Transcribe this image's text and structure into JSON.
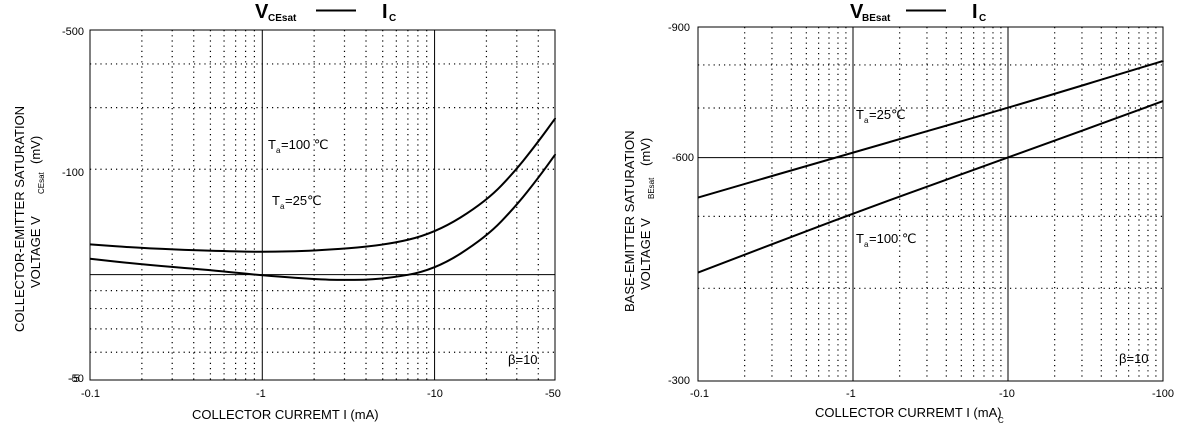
{
  "chart_data": [
    {
      "type": "line",
      "title_main": "V",
      "title_sub": "CEsat",
      "title_sep": "——",
      "title_right": "I",
      "title_right_sub": "C",
      "xlabel": "COLLECTOR CURREMT I  (mA)",
      "ylabel_line1": "COLLECTOR-EMITTER SATURATION",
      "ylabel_line2": "VOLTAGE   V",
      "ylabel_sub": "CEsat",
      "ylabel_unit": "(mV)",
      "x_scale": "log",
      "y_scale": "log",
      "xlim": [
        -0.1,
        -50
      ],
      "ylim": [
        -50,
        -500
      ],
      "x_ticks": [
        "-0.1",
        "-1",
        "-10",
        "-50"
      ],
      "y_ticks": [
        "-500",
        "-100",
        "-50"
      ],
      "y_tick_extra": "-5",
      "grid": true,
      "annotation": "β=10",
      "series": [
        {
          "name": "Ta=100 ℃",
          "label_T": "T",
          "label_sub": "a",
          "label_rest": "=100 ℃",
          "x": [
            -0.1,
            -0.2,
            -0.5,
            -1,
            -2,
            -5,
            -10,
            -20,
            -30,
            -40,
            -50
          ],
          "y": [
            -122,
            -119,
            -117,
            -116,
            -117,
            -121,
            -131,
            -162,
            -200,
            -240,
            -279
          ]
        },
        {
          "name": "Ta=25℃",
          "label_T": "T",
          "label_sub": "a",
          "label_rest": "=25℃",
          "x": [
            -0.1,
            -0.2,
            -0.5,
            -1,
            -2,
            -3,
            -5,
            -10,
            -20,
            -30,
            -40,
            -50
          ],
          "y": [
            -111,
            -107,
            -103,
            -99.5,
            -97,
            -96.5,
            -97,
            -103,
            -128,
            -158,
            -189,
            -220
          ]
        }
      ]
    },
    {
      "type": "line",
      "title_main": "V",
      "title_sub": "BEsat",
      "title_sep": "——",
      "title_right": "I",
      "title_right_sub": "C",
      "xlabel": "COLLECTOR CURREMT    I    (mA)",
      "xlabel_sub": "C",
      "ylabel_line1": "BASE-EMITTER SATURATION",
      "ylabel_line2": "VOLTAGE   V",
      "ylabel_sub": "BEsat",
      "ylabel_unit": "(mV)",
      "x_scale": "log",
      "y_scale": "log",
      "xlim": [
        -0.1,
        -100
      ],
      "ylim": [
        -300,
        -900
      ],
      "x_ticks": [
        "-0.1",
        "-1",
        "-10",
        "-100"
      ],
      "y_ticks": [
        "-900",
        "-600",
        "-300"
      ],
      "grid": true,
      "annotation": "β=10",
      "series": [
        {
          "name": "Ta=25℃",
          "label_T": "T",
          "label_sub": "a",
          "label_rest": "=25℃",
          "x": [
            -0.1,
            -1,
            -10,
            -100
          ],
          "y": [
            -530,
            -610,
            -700,
            -810
          ]
        },
        {
          "name": "Ta=100 ℃",
          "label_T": "T",
          "label_sub": "a",
          "label_rest": "=100 ℃",
          "x": [
            -0.1,
            -1,
            -10,
            -100
          ],
          "y": [
            -420,
            -505,
            -600,
            -715
          ]
        }
      ]
    }
  ]
}
